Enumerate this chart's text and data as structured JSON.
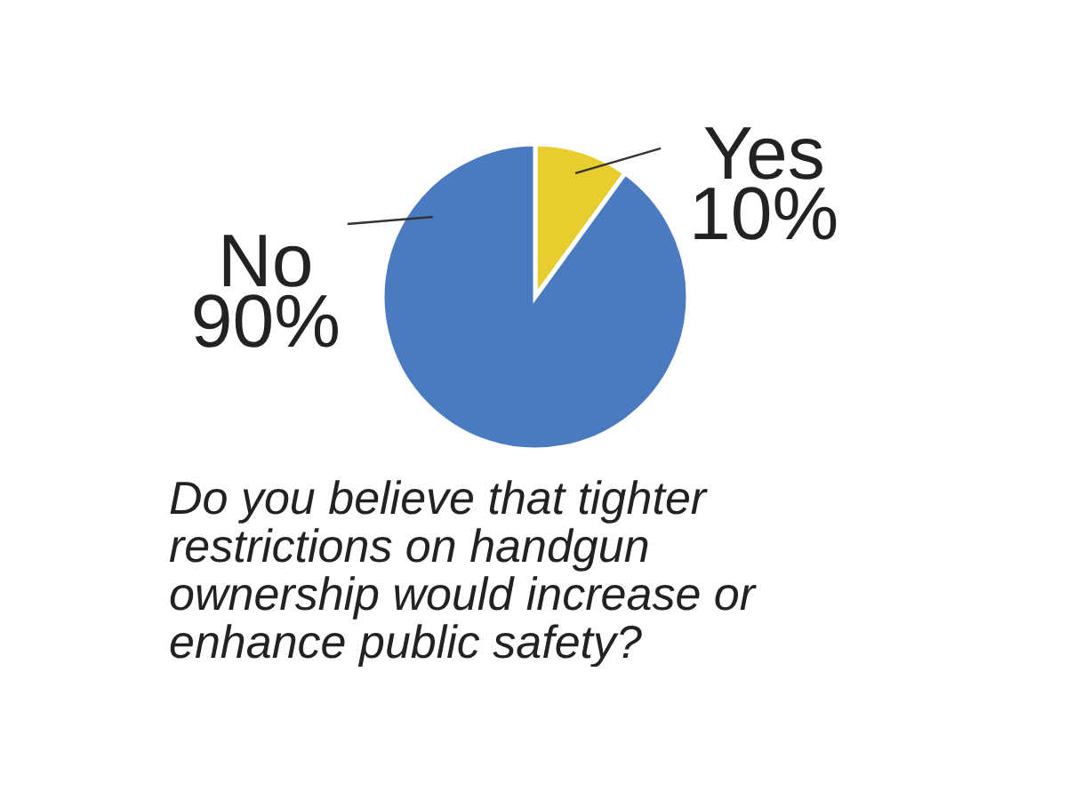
{
  "chart_data": {
    "type": "pie",
    "title": "Do you believe that tighter restrictions on handgun ownership would increase or enhance public safety?",
    "categories": [
      "Yes",
      "No"
    ],
    "values": [
      10,
      90
    ],
    "colors": [
      "#e8cd2e",
      "#4a7bc0"
    ],
    "value_labels": [
      "10%",
      "90%"
    ]
  }
}
